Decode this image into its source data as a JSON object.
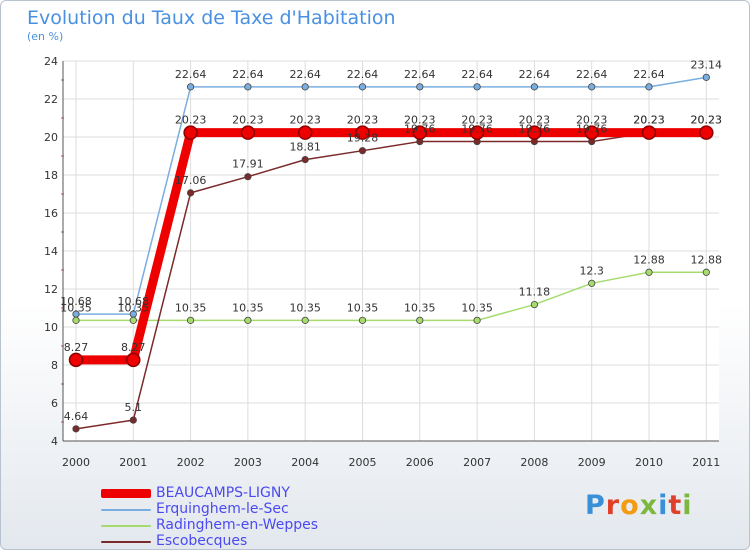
{
  "header": {
    "title": "Evolution du Taux de Taxe d'Habitation",
    "unit": "(en %)"
  },
  "chart_data": {
    "type": "line",
    "title": "Evolution du Taux de Taxe d'Habitation",
    "ylabel": "(en %)",
    "xlabel": "",
    "ylim": [
      4,
      24
    ],
    "yticks": [
      4,
      6,
      8,
      10,
      12,
      14,
      16,
      18,
      20,
      22,
      24
    ],
    "grid": true,
    "legend_position": "bottom-left",
    "categories": [
      "2000",
      "2001",
      "2002",
      "2003",
      "2004",
      "2005",
      "2006",
      "2007",
      "2008",
      "2009",
      "2010",
      "2011"
    ],
    "series": [
      {
        "name": "BEAUCAMPS-LIGNY",
        "color": "#ee0000",
        "values": [
          8.27,
          8.27,
          20.23,
          20.23,
          20.23,
          20.23,
          20.23,
          20.23,
          20.23,
          20.23,
          20.23,
          20.23
        ],
        "labels": [
          "8.27",
          "8.27",
          "20.23",
          "20.23",
          "20.23",
          "20.23",
          "20.23",
          "20.23",
          "20.23",
          "20.23",
          "20.23",
          "20.23"
        ]
      },
      {
        "name": "Erquinghem-le-Sec",
        "color": "#7aaee0",
        "values": [
          10.68,
          10.68,
          22.64,
          22.64,
          22.64,
          22.64,
          22.64,
          22.64,
          22.64,
          22.64,
          22.64,
          23.14
        ],
        "labels": [
          "10.68",
          "10.68",
          "22.64",
          "22.64",
          "22.64",
          "22.64",
          "22.64",
          "22.64",
          "22.64",
          "22.64",
          "22.64",
          "23.14"
        ]
      },
      {
        "name": "Radinghem-en-Weppes",
        "color": "#a6dc6e",
        "values": [
          10.35,
          10.35,
          10.35,
          10.35,
          10.35,
          10.35,
          10.35,
          10.35,
          11.18,
          12.3,
          12.88,
          12.88
        ],
        "labels": [
          "10.35",
          "10.35",
          "10.35",
          "10.35",
          "10.35",
          "10.35",
          "10.35",
          "10.35",
          "11.18",
          "12.3",
          "12.88",
          "12.88"
        ]
      },
      {
        "name": "Escobecques",
        "color": "#7a2a2a",
        "values": [
          4.64,
          5.1,
          17.06,
          17.91,
          18.81,
          19.28,
          19.76,
          19.76,
          19.76,
          19.76,
          20.23,
          20.23
        ],
        "labels": [
          "4.64",
          "5.1",
          "17.06",
          "17.91",
          "18.81",
          "19.28",
          "19.76",
          "19.76",
          "19.76",
          "19.76",
          "20.23",
          "20.23"
        ]
      }
    ]
  },
  "logo": {
    "text": "Proxiti",
    "colors": [
      "#3a8fd9",
      "#e0402a",
      "#f39c12",
      "#7cb83e",
      "#3a8fd9",
      "#e0402a",
      "#7cb83e"
    ]
  }
}
